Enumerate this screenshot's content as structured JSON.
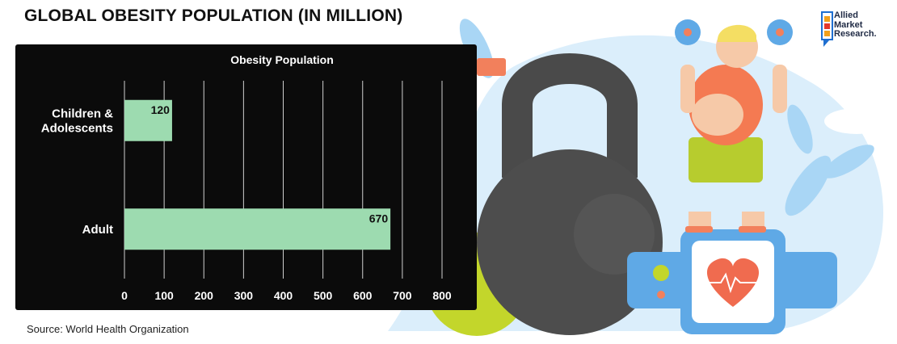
{
  "page": {
    "title": "GLOBAL OBESITY POPULATION (IN MILLION)",
    "source": "Source: World Health Organization"
  },
  "brand": {
    "line1": "Allied",
    "line2": "Market",
    "line3": "Research."
  },
  "colors": {
    "bar": "#9ddbb0",
    "panel": "#0b0b0b",
    "grid": "#cfcfcf",
    "text": "#ffffff"
  },
  "chart_data": {
    "type": "bar",
    "orientation": "horizontal",
    "title": "Obesity Population",
    "categories": [
      "Children & Adolescents",
      "Adult"
    ],
    "category_lines": [
      [
        "Children &",
        "Adolescents"
      ],
      [
        "Adult"
      ]
    ],
    "values": [
      120,
      670
    ],
    "value_labels": [
      "120",
      "670"
    ],
    "xlim": [
      0,
      800
    ],
    "xticks": [
      0,
      100,
      200,
      300,
      400,
      500,
      600,
      700,
      800
    ],
    "grid": true,
    "legend": "none"
  }
}
